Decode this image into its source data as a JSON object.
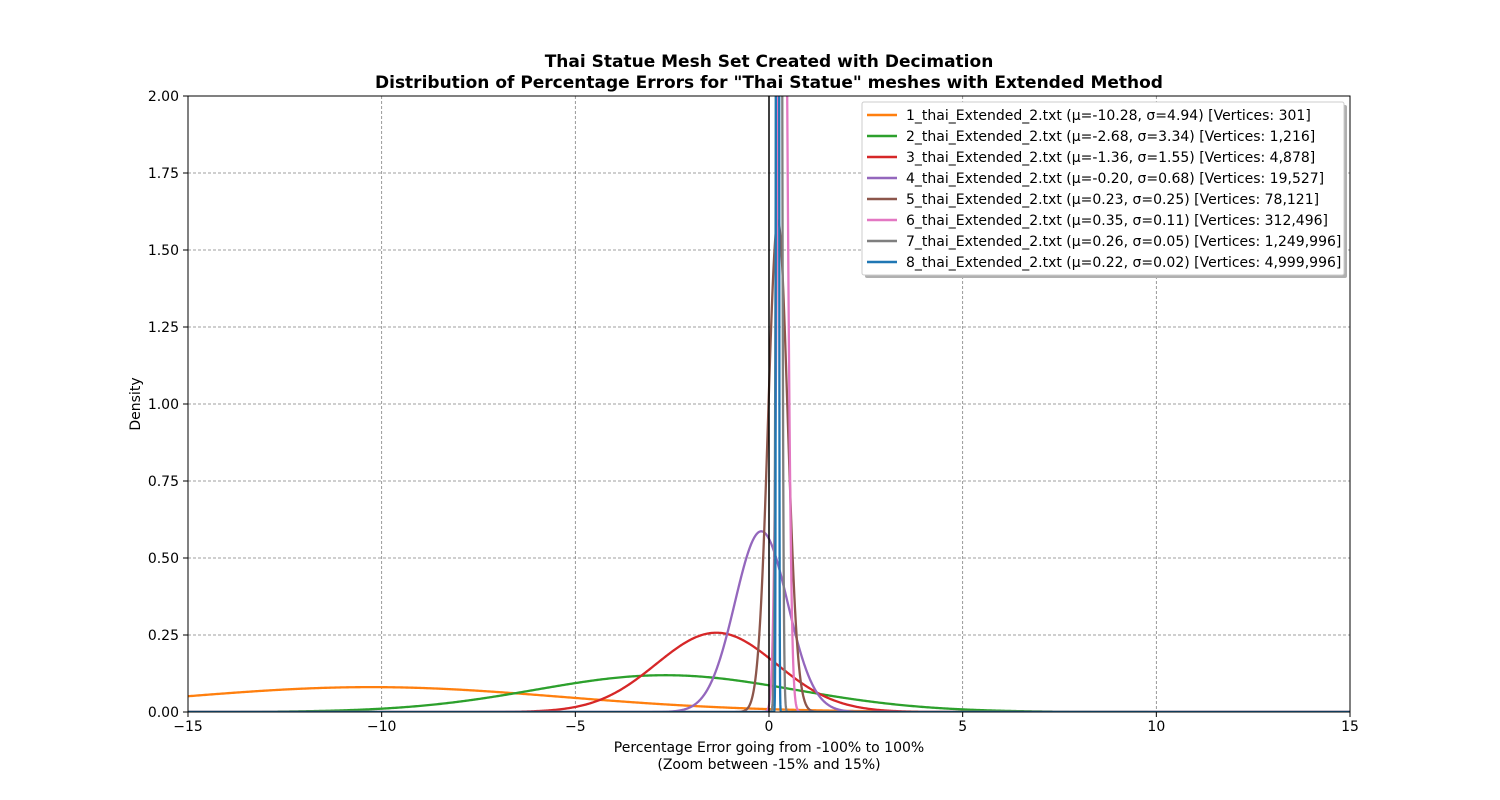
{
  "chart_data": {
    "type": "line",
    "title": [
      "Thai Statue Mesh Set Created with Decimation",
      "Distribution of Percentage Errors for \"Thai Statue\" meshes with Extended Method"
    ],
    "xlabel": [
      "Percentage Error going from -100% to 100%",
      "(Zoom between -15% and 15%)"
    ],
    "ylabel": "Density",
    "xlim": [
      -15,
      15
    ],
    "ylim": [
      0,
      2
    ],
    "xticks": [
      -15,
      -10,
      -5,
      0,
      5,
      10,
      15
    ],
    "xtick_labels": [
      "−15",
      "−10",
      "−5",
      "0",
      "5",
      "10",
      "15"
    ],
    "yticks": [
      0,
      0.25,
      0.5,
      0.75,
      1.0,
      1.25,
      1.5,
      1.75,
      2.0
    ],
    "ytick_labels": [
      "0.00",
      "0.25",
      "0.50",
      "0.75",
      "1.00",
      "1.25",
      "1.50",
      "1.75",
      "2.00"
    ],
    "grid": true,
    "vertical_reference_line_x": 0,
    "legend_position": "top-right",
    "series": [
      {
        "name": "1_thai_Extended_2.txt (μ=-10.28, σ=4.94) [Vertices: 301]",
        "mu": -10.28,
        "sigma": 4.94,
        "color": "#ff7f0e"
      },
      {
        "name": "2_thai_Extended_2.txt (μ=-2.68, σ=3.34) [Vertices: 1,216]",
        "mu": -2.68,
        "sigma": 3.34,
        "color": "#2ca02c"
      },
      {
        "name": "3_thai_Extended_2.txt (μ=-1.36, σ=1.55) [Vertices: 4,878]",
        "mu": -1.36,
        "sigma": 1.55,
        "color": "#d62728"
      },
      {
        "name": "4_thai_Extended_2.txt (μ=-0.20, σ=0.68) [Vertices: 19,527]",
        "mu": -0.2,
        "sigma": 0.68,
        "color": "#9467bd"
      },
      {
        "name": "5_thai_Extended_2.txt (μ=0.23, σ=0.25) [Vertices: 78,121]",
        "mu": 0.23,
        "sigma": 0.25,
        "color": "#8c564b"
      },
      {
        "name": "6_thai_Extended_2.txt (μ=0.35, σ=0.11) [Vertices: 312,496]",
        "mu": 0.35,
        "sigma": 0.11,
        "color": "#e377c2"
      },
      {
        "name": "7_thai_Extended_2.txt (μ=0.26, σ=0.05) [Vertices: 1,249,996]",
        "mu": 0.26,
        "sigma": 0.05,
        "color": "#7f7f7f"
      },
      {
        "name": "8_thai_Extended_2.txt (μ=0.22, σ=0.02) [Vertices: 4,999,996]",
        "mu": 0.22,
        "sigma": 0.02,
        "color": "#1f77b4"
      }
    ]
  }
}
